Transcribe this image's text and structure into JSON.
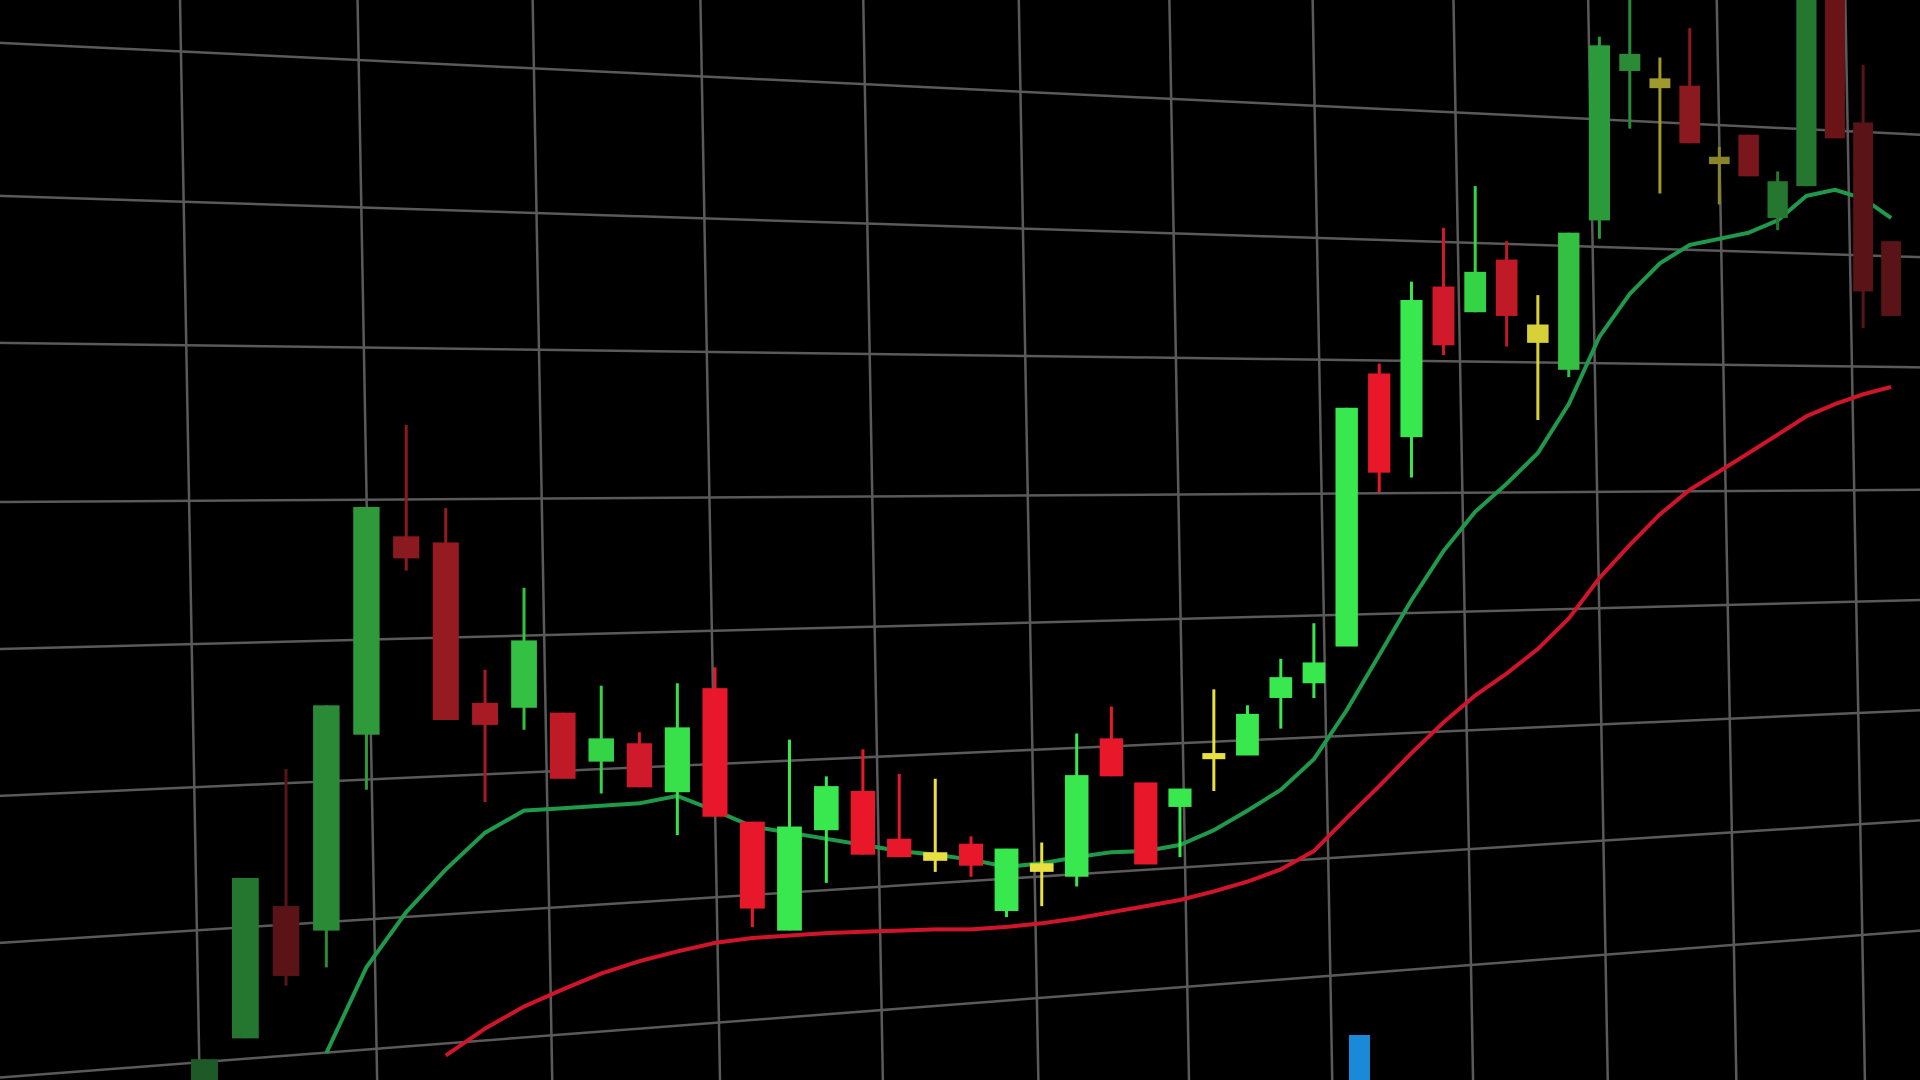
{
  "chart_data": {
    "type": "candlestick",
    "ylim": [
      0,
      882
    ],
    "grid": true,
    "open": [
      0,
      34,
      142,
      122,
      282,
      444,
      439,
      308,
      304,
      300,
      260,
      275,
      235,
      320,
      211,
      122,
      204,
      236,
      197,
      186,
      193,
      138,
      177,
      166,
      279,
      243,
      223,
      267,
      265,
      312,
      324,
      354,
      577,
      525,
      648,
      627,
      670,
      617,
      580,
      702,
      824,
      818,
      812,
      754,
      772,
      704,
      730,
      882,
      782,
      685
    ],
    "high": [
      17,
      165,
      254,
      306,
      468,
      535,
      467,
      335,
      402,
      300,
      322,
      284,
      324,
      337,
      211,
      278,
      248,
      270,
      250,
      246,
      199,
      189,
      194,
      283,
      305,
      243,
      238,
      319,
      306,
      344,
      373,
      549,
      585,
      652,
      696,
      730,
      685,
      641,
      692,
      852,
      882,
      835,
      859,
      762,
      772,
      742,
      882,
      882,
      829,
      685
    ],
    "low": [
      0,
      34,
      77,
      92,
      237,
      416,
      294,
      227,
      286,
      246,
      234,
      239,
      200,
      215,
      125,
      122,
      161,
      184,
      182,
      170,
      166,
      133,
      142,
      158,
      248,
      176,
      182,
      236,
      265,
      287,
      312,
      354,
      480,
      492,
      592,
      627,
      599,
      539,
      574,
      687,
      777,
      724,
      765,
      715,
      738,
      694,
      730,
      769,
      614,
      624
    ],
    "close": [
      17,
      165,
      85,
      306,
      468,
      426,
      294,
      290,
      359,
      246,
      279,
      239,
      288,
      215,
      140,
      207,
      240,
      184,
      182,
      179,
      175,
      189,
      170,
      249,
      248,
      176,
      238,
      262,
      299,
      329,
      341,
      549,
      496,
      637,
      600,
      660,
      624,
      602,
      692,
      845,
      838,
      810,
      765,
      748,
      738,
      734,
      882,
      769,
      644,
      624
    ],
    "colors": [
      "#1e5a28",
      "#25772f",
      "#5a1418",
      "#2a8a36",
      "#2f9a3a",
      "#8a1a1f",
      "#961b21",
      "#a81b24",
      "#33c043",
      "#c01a27",
      "#35d447",
      "#d0192a",
      "#38e04a",
      "#e8182a",
      "#e8182a",
      "#38e84e",
      "#38e84e",
      "#e8182a",
      "#e8182a",
      "#e8e040",
      "#e8182a",
      "#38e84e",
      "#e8e040",
      "#38e84e",
      "#e8182a",
      "#e8182a",
      "#38e84e",
      "#e8e040",
      "#38e84e",
      "#38e84e",
      "#38e84e",
      "#38e84e",
      "#e8182a",
      "#38e84e",
      "#d0192a",
      "#35d447",
      "#c01a27",
      "#d8d038",
      "#33c043",
      "#2a9a3a",
      "#2a8a36",
      "#a09a2e",
      "#8a1a1f",
      "#8a842a",
      "#7a171c",
      "#25772f",
      "#25772f",
      "#6a1418",
      "#5a1418",
      "#5a1418"
    ],
    "lines": [
      {
        "color": "#1f9a4a",
        "values": [
          null,
          null,
          null,
          22,
          92,
          137,
          172,
          202,
          220,
          222,
          224,
          226,
          232,
          220,
          207,
          202,
          197,
          192,
          187,
          184,
          180,
          174,
          177,
          182,
          186,
          187,
          192,
          204,
          220,
          237,
          262,
          302,
          347,
          392,
          432,
          464,
          487,
          512,
          552,
          607,
          642,
          667,
          682,
          687,
          692,
          702,
          722,
          727,
          720,
          704
        ]
      },
      {
        "color": "#d0142a",
        "values": [
          null,
          null,
          null,
          null,
          null,
          null,
          20,
          42,
          60,
          74,
          87,
          97,
          105,
          112,
          116,
          118,
          120,
          121,
          122,
          123,
          123,
          125,
          128,
          132,
          137,
          142,
          147,
          154,
          162,
          172,
          187,
          214,
          240,
          267,
          292,
          314,
          332,
          352,
          377,
          410,
          437,
          462,
          482,
          497,
          512,
          527,
          542,
          552,
          560,
          566
        ]
      }
    ]
  }
}
